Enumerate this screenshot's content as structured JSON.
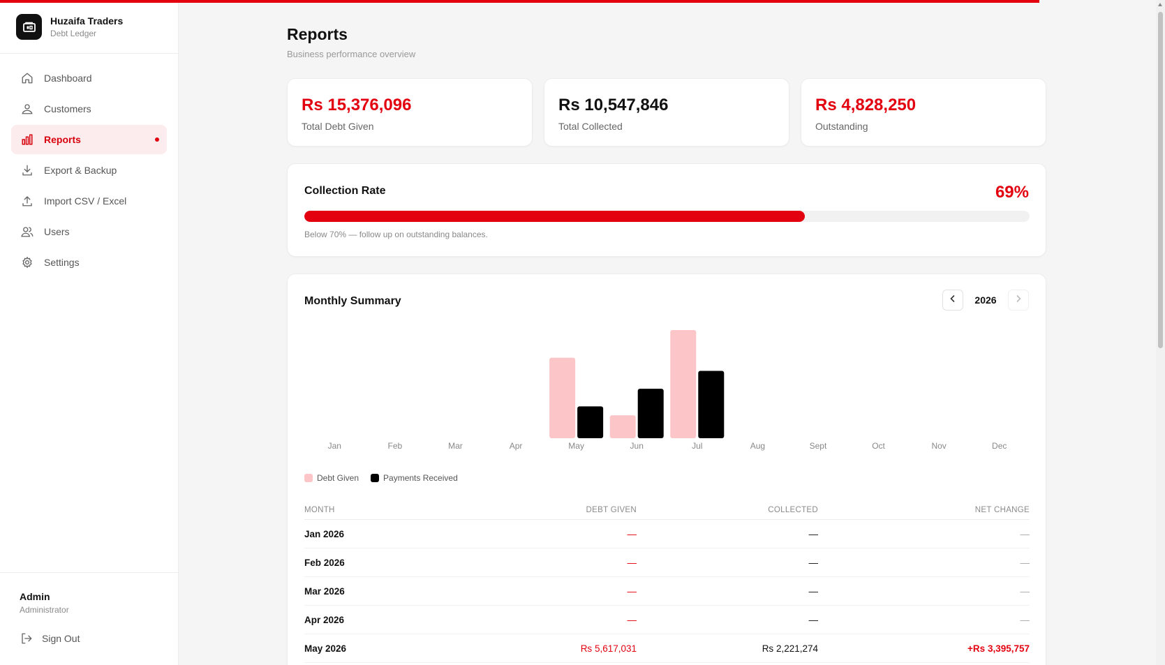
{
  "brand": {
    "name": "Huzaifa Traders",
    "subtitle": "Debt Ledger"
  },
  "nav": [
    {
      "label": "Dashboard",
      "icon": "home-icon"
    },
    {
      "label": "Customers",
      "icon": "user-icon"
    },
    {
      "label": "Reports",
      "icon": "bar-chart-icon",
      "active": true
    },
    {
      "label": "Export & Backup",
      "icon": "download-icon"
    },
    {
      "label": "Import CSV / Excel",
      "icon": "upload-icon"
    },
    {
      "label": "Users",
      "icon": "users-icon"
    },
    {
      "label": "Settings",
      "icon": "gear-icon"
    }
  ],
  "user": {
    "name": "Admin",
    "role": "Administrator",
    "signout_label": "Sign Out"
  },
  "page": {
    "title": "Reports",
    "subtitle": "Business performance overview"
  },
  "stats": [
    {
      "value": "Rs 15,376,096",
      "label": "Total Debt Given",
      "color": "#e3000f"
    },
    {
      "value": "Rs 10,547,846",
      "label": "Total Collected",
      "color": "#111111"
    },
    {
      "value": "Rs 4,828,250",
      "label": "Outstanding",
      "color": "#e3000f"
    }
  ],
  "collection_rate": {
    "title": "Collection Rate",
    "percent_label": "69%",
    "percent": 69,
    "note": "Below 70% — follow up on outstanding balances."
  },
  "monthly_summary": {
    "title": "Monthly Summary",
    "year": "2026",
    "legend": {
      "debt": "Debt Given",
      "payments": "Payments Received"
    },
    "table": {
      "headers": [
        "MONTH",
        "DEBT GIVEN",
        "COLLECTED",
        "NET CHANGE"
      ],
      "rows": [
        {
          "month": "Jan 2026",
          "debt": "—",
          "collected": "—",
          "net": "—"
        },
        {
          "month": "Feb 2026",
          "debt": "—",
          "collected": "—",
          "net": "—"
        },
        {
          "month": "Mar 2026",
          "debt": "—",
          "collected": "—",
          "net": "—"
        },
        {
          "month": "Apr 2026",
          "debt": "—",
          "collected": "—",
          "net": "—"
        },
        {
          "month": "May 2026",
          "debt": "Rs 5,617,031",
          "collected": "Rs 2,221,274",
          "net": "+Rs 3,395,757"
        }
      ]
    }
  },
  "chart_data": {
    "type": "bar",
    "categories": [
      "Jan",
      "Feb",
      "Mar",
      "Apr",
      "May",
      "Jun",
      "Jul",
      "Aug",
      "Sept",
      "Oct",
      "Nov",
      "Dec"
    ],
    "series": [
      {
        "name": "Debt Given",
        "color": "#fcc6c9",
        "values": [
          0,
          0,
          0,
          0,
          5617031,
          1600000,
          7550000,
          0,
          0,
          0,
          0,
          0
        ]
      },
      {
        "name": "Payments Received",
        "color": "#000000",
        "values": [
          0,
          0,
          0,
          0,
          2221274,
          3450000,
          4700000,
          0,
          0,
          0,
          0,
          0
        ]
      }
    ],
    "ylim": [
      0,
      7550000
    ],
    "legend": "bottom-left",
    "grid": false
  },
  "colors": {
    "accent": "#e3000f",
    "active_bg": "#fdecee"
  }
}
